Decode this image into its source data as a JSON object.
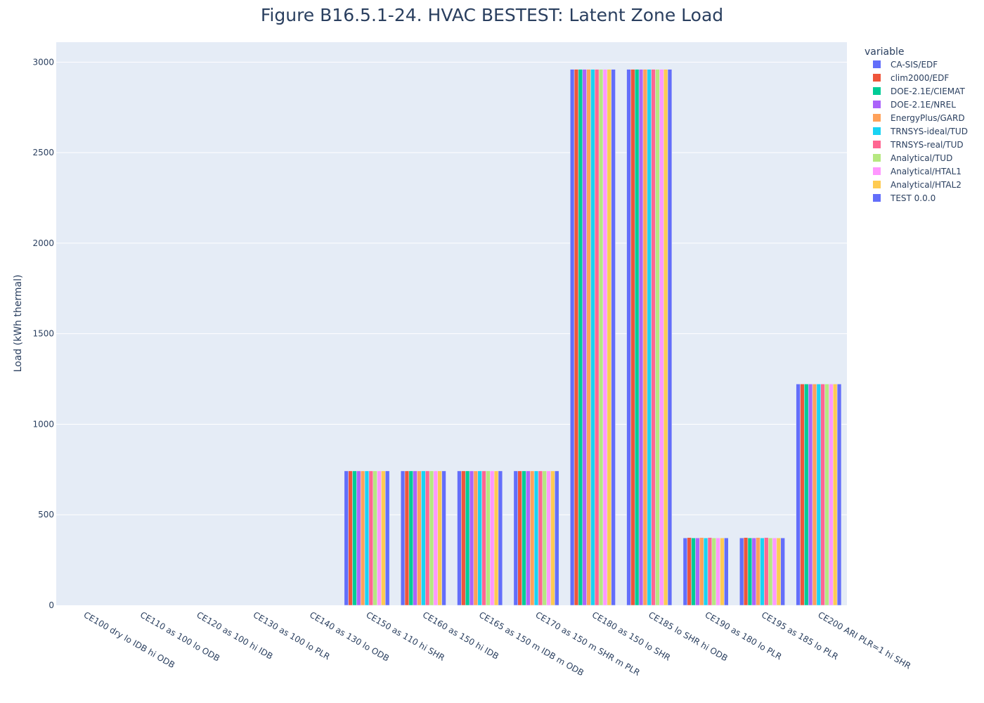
{
  "chart_data": {
    "type": "bar",
    "title": "Figure B16.5.1-24. HVAC BESTEST: Latent Zone Load",
    "xlabel": "",
    "ylabel": "Load (kWh thermal)",
    "ylim": [
      0,
      3110
    ],
    "yticks": [
      0,
      500,
      1000,
      1500,
      2000,
      2500,
      3000
    ],
    "grid": true,
    "legend_title": "variable",
    "legend_position": "right",
    "categories": [
      "CE100 dry lo IDB hi ODB",
      "CE110 as 100 lo ODB",
      "CE120 as 100 hi IDB",
      "CE130 as 100 lo PLR",
      "CE140 as 130 lo ODB",
      "CE150 as 110 hi SHR",
      "CE160 as 150 hi IDB",
      "CE165 as 150 m IDB m ODB",
      "CE170 as 150 m SHR m PLR",
      "CE180 as 150 lo SHR",
      "CE185 lo SHR hi ODB",
      "CE190 as 180 lo PLR",
      "CE195 as 185 lo PLR",
      "CE200 ARI  PLR=1 hi SHR"
    ],
    "series": [
      {
        "name": "CA-SIS/EDF",
        "color": "#636efa",
        "values": [
          0,
          0,
          0,
          0,
          0,
          742,
          742,
          742,
          742,
          2960,
          2960,
          372,
          372,
          1222
        ]
      },
      {
        "name": "clim2000/EDF",
        "color": "#EF553B",
        "values": [
          0,
          0,
          0,
          0,
          0,
          742,
          742,
          742,
          742,
          2960,
          2960,
          374,
          374,
          1222
        ]
      },
      {
        "name": "DOE-2.1E/CIEMAT",
        "color": "#00cc96",
        "values": [
          0,
          0,
          0,
          0,
          0,
          742,
          742,
          742,
          742,
          2960,
          2960,
          372,
          372,
          1222
        ]
      },
      {
        "name": "DOE-2.1E/NREL",
        "color": "#ab63fa",
        "values": [
          0,
          0,
          0,
          0,
          0,
          742,
          742,
          742,
          742,
          2960,
          2960,
          372,
          372,
          1222
        ]
      },
      {
        "name": "EnergyPlus/GARD",
        "color": "#FFA15A",
        "values": [
          0,
          0,
          0,
          0,
          0,
          742,
          742,
          742,
          742,
          2960,
          2960,
          374,
          374,
          1222
        ]
      },
      {
        "name": "TRNSYS-ideal/TUD",
        "color": "#19d3f3",
        "values": [
          0,
          0,
          0,
          0,
          0,
          742,
          742,
          742,
          742,
          2960,
          2960,
          372,
          372,
          1222
        ]
      },
      {
        "name": "TRNSYS-real/TUD",
        "color": "#FF6692",
        "values": [
          0,
          0,
          0,
          0,
          0,
          742,
          742,
          742,
          742,
          2960,
          2960,
          374,
          374,
          1222
        ]
      },
      {
        "name": "Analytical/TUD",
        "color": "#B6E880",
        "values": [
          0,
          0,
          0,
          0,
          0,
          742,
          742,
          742,
          742,
          2960,
          2960,
          372,
          372,
          1222
        ]
      },
      {
        "name": "Analytical/HTAL1",
        "color": "#FF97FF",
        "values": [
          0,
          0,
          0,
          0,
          0,
          742,
          742,
          742,
          742,
          2960,
          2960,
          372,
          372,
          1222
        ]
      },
      {
        "name": "Analytical/HTAL2",
        "color": "#FECB52",
        "values": [
          0,
          0,
          0,
          0,
          0,
          742,
          742,
          742,
          742,
          2960,
          2960,
          372,
          372,
          1222
        ]
      },
      {
        "name": "TEST 0.0.0",
        "color": "#636efa",
        "values": [
          0,
          0,
          0,
          0,
          0,
          742,
          742,
          742,
          742,
          2960,
          2960,
          372,
          372,
          1222
        ]
      }
    ]
  }
}
